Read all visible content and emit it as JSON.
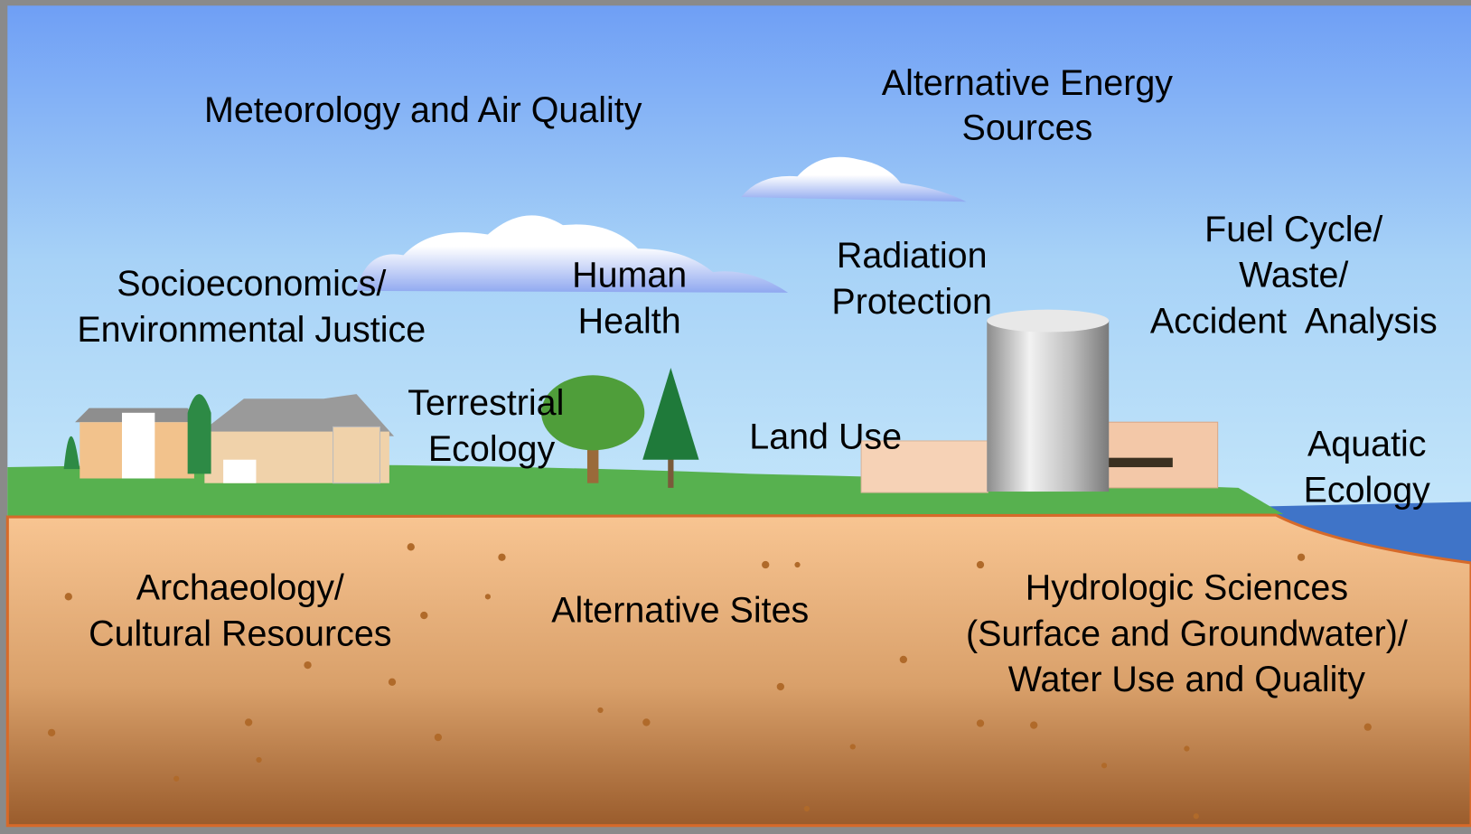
{
  "labels": [
    {
      "lines": [
        "Meteorology and Air Quality"
      ]
    },
    {
      "lines": [
        "Alternative Energy",
        "Sources"
      ]
    },
    {
      "lines": [
        "Socioeconomics/",
        "Environmental Justice"
      ]
    },
    {
      "lines": [
        "Human",
        "Health"
      ]
    },
    {
      "lines": [
        "Radiation",
        "Protection"
      ]
    },
    {
      "lines": [
        "Fuel Cycle/",
        "Waste/",
        "Accident  Analysis"
      ]
    },
    {
      "lines": [
        "Terrestrial",
        "Ecology"
      ]
    },
    {
      "lines": [
        "Land Use"
      ]
    },
    {
      "lines": [
        "Aquatic",
        "Ecology"
      ]
    },
    {
      "lines": [
        "Archaeology/",
        "Cultural Resources"
      ]
    },
    {
      "lines": [
        "Alternative Sites"
      ]
    },
    {
      "lines": [
        "Hydrologic Sciences",
        "(Surface and Groundwater)/",
        "Water Use and Quality"
      ]
    }
  ]
}
